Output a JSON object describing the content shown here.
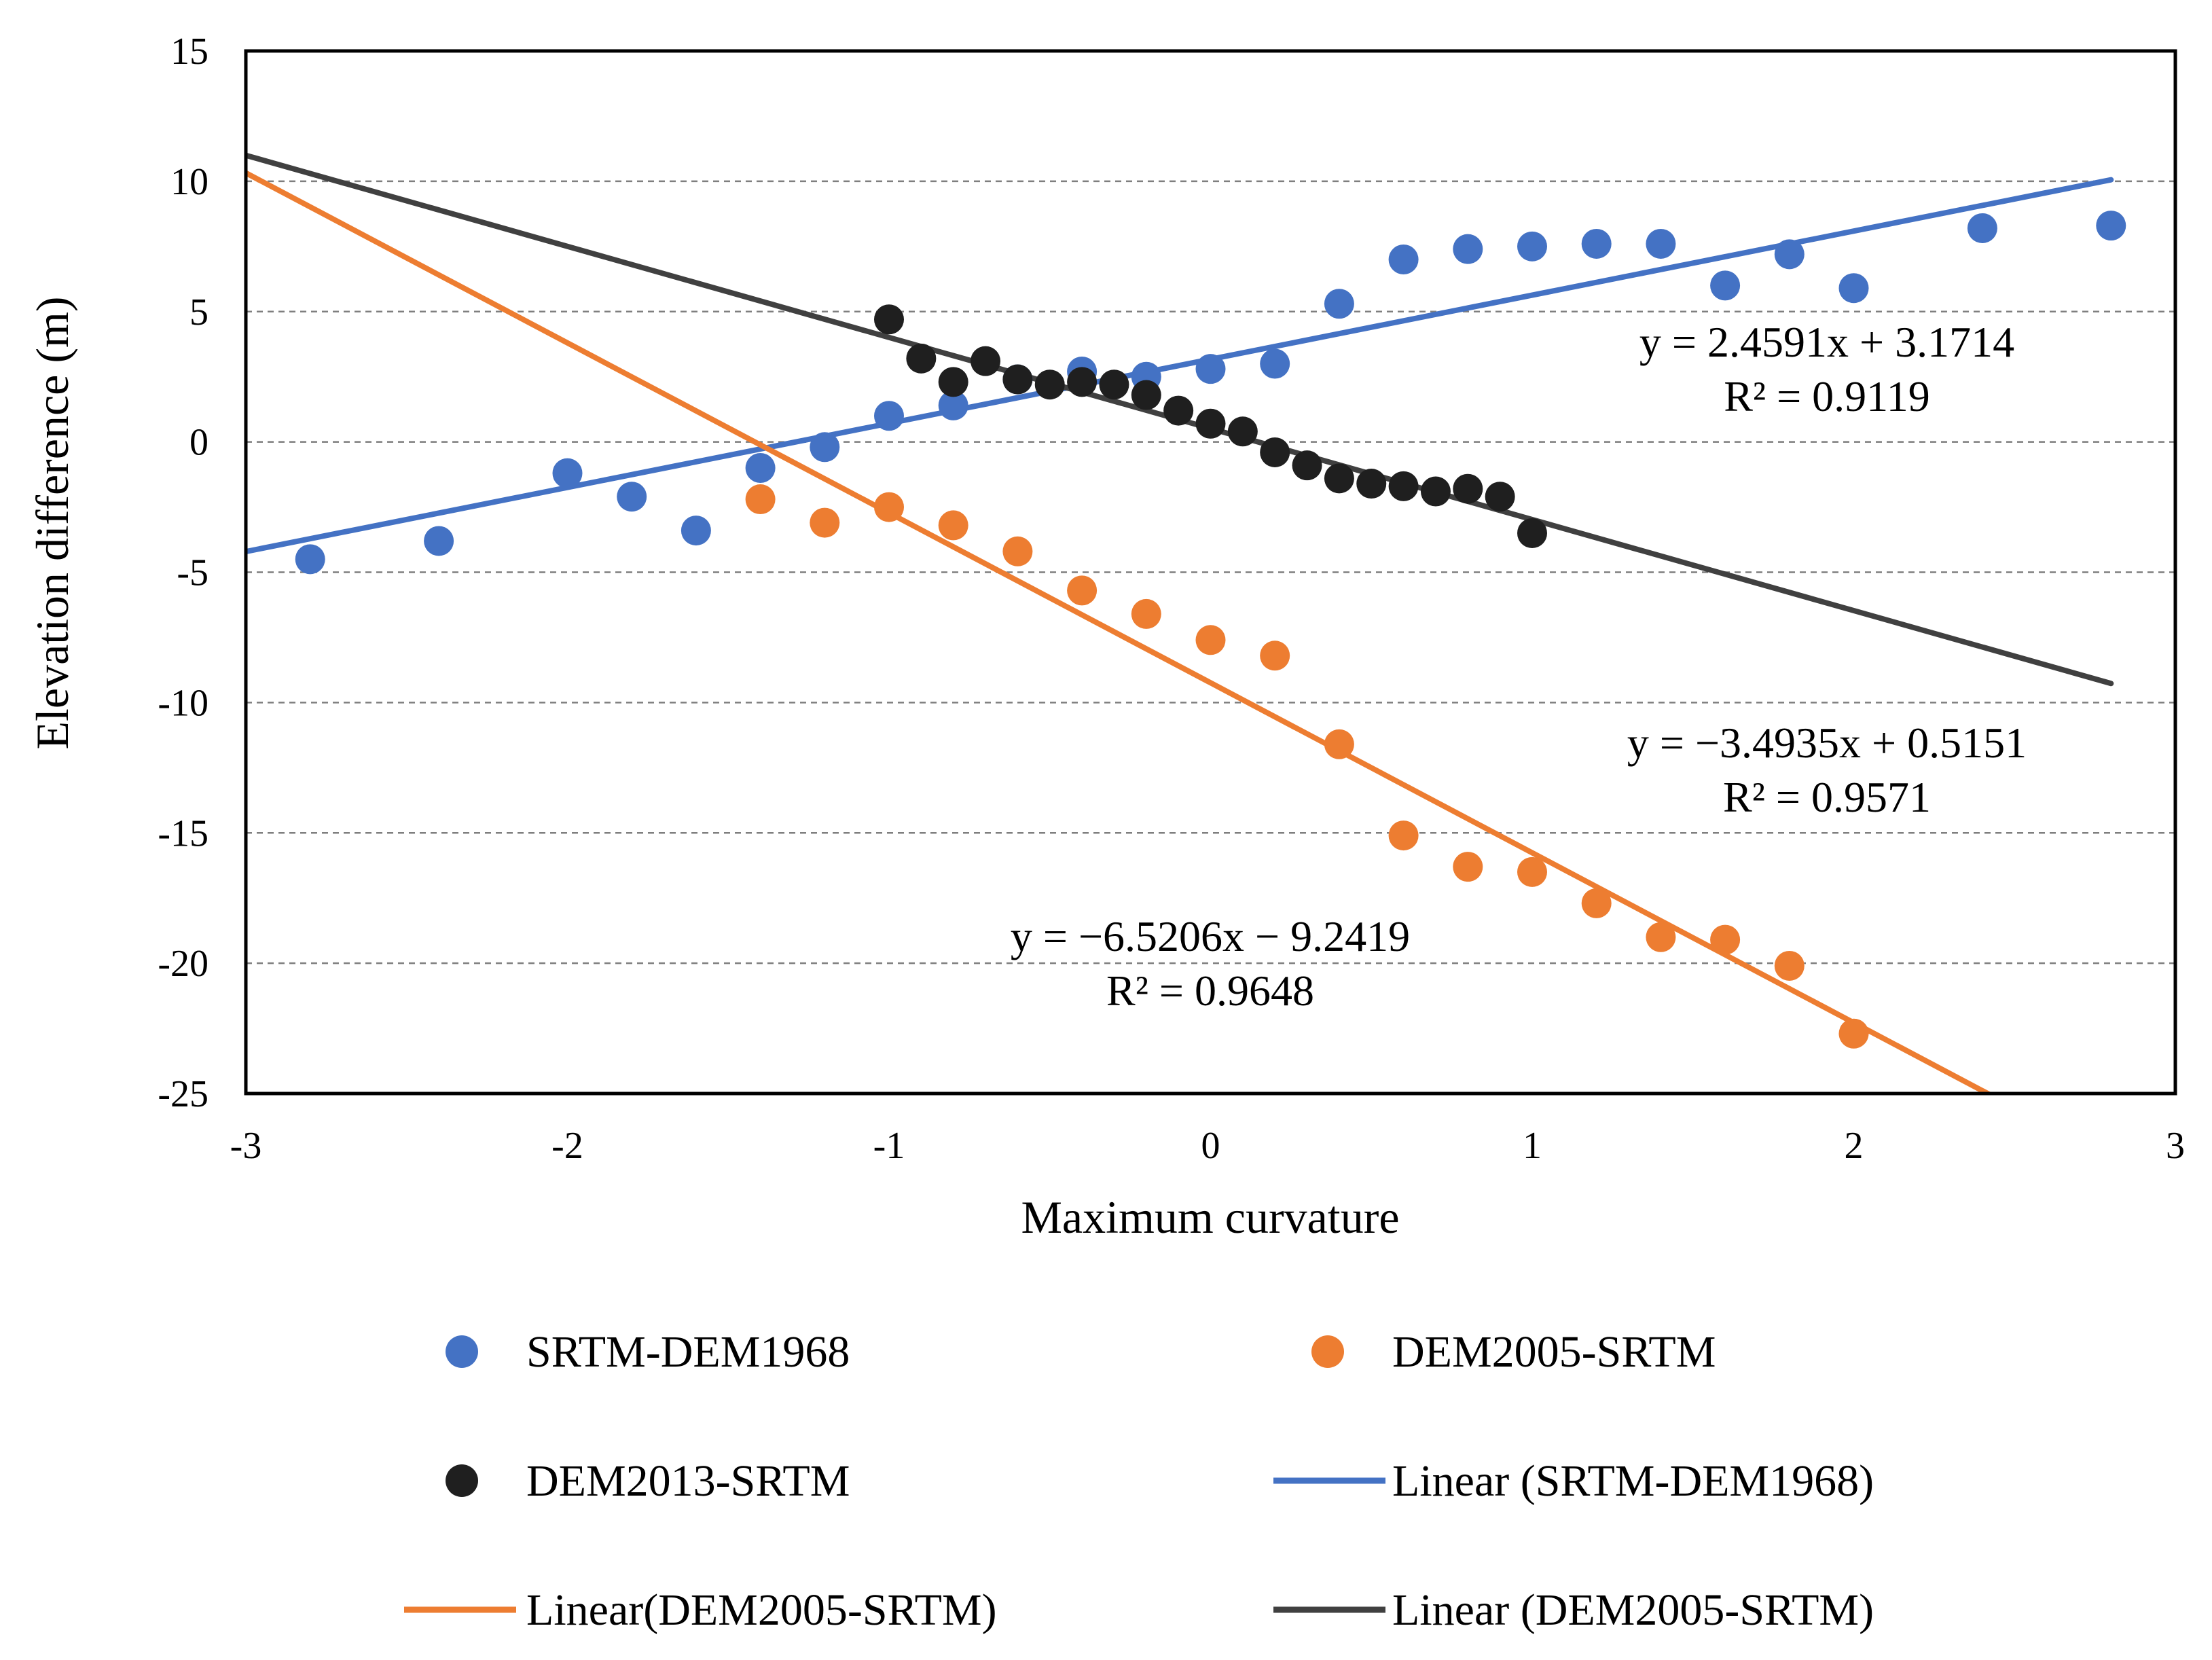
{
  "chart_data": {
    "type": "scatter",
    "xlabel": "Maximum curvature",
    "ylabel": "Elevation difference (m)",
    "xlim": [
      -3,
      3
    ],
    "ylim": [
      -25,
      15
    ],
    "x_ticks": [
      -3,
      -2,
      -1,
      0,
      1,
      2,
      3
    ],
    "y_ticks": [
      -25,
      -20,
      -15,
      -10,
      -5,
      0,
      5,
      10,
      15
    ],
    "grid": "horizontal dashed",
    "legend_position": "bottom",
    "series": [
      {
        "name": "SRTM-DEM1968",
        "type": "scatter",
        "color": "#4472C4",
        "points": [
          [
            -2.8,
            -4.5
          ],
          [
            -2.4,
            -3.8
          ],
          [
            -2.0,
            -1.2
          ],
          [
            -1.8,
            -2.1
          ],
          [
            -1.6,
            -3.4
          ],
          [
            -1.4,
            -1.0
          ],
          [
            -1.2,
            -0.2
          ],
          [
            -1.0,
            1.0
          ],
          [
            -0.8,
            1.4
          ],
          [
            -0.6,
            2.4
          ],
          [
            -0.4,
            2.7
          ],
          [
            -0.2,
            2.5
          ],
          [
            0.0,
            2.8
          ],
          [
            0.2,
            3.0
          ],
          [
            0.4,
            5.3
          ],
          [
            0.6,
            7.0
          ],
          [
            0.8,
            7.4
          ],
          [
            1.0,
            7.5
          ],
          [
            1.2,
            7.6
          ],
          [
            1.4,
            7.6
          ],
          [
            1.6,
            6.0
          ],
          [
            1.8,
            7.2
          ],
          [
            2.0,
            5.9
          ],
          [
            2.4,
            8.2
          ],
          [
            2.8,
            8.3
          ]
        ]
      },
      {
        "name": "DEM2005-SRTM",
        "type": "scatter",
        "color": "#ED7D31",
        "points": [
          [
            -1.4,
            -2.2
          ],
          [
            -1.2,
            -3.1
          ],
          [
            -1.0,
            -2.5
          ],
          [
            -0.8,
            -3.2
          ],
          [
            -0.6,
            -4.2
          ],
          [
            -0.4,
            -5.7
          ],
          [
            -0.2,
            -6.6
          ],
          [
            0.0,
            -7.6
          ],
          [
            0.2,
            -8.2
          ],
          [
            0.4,
            -11.6
          ],
          [
            0.6,
            -15.1
          ],
          [
            0.8,
            -16.3
          ],
          [
            1.0,
            -16.5
          ],
          [
            1.2,
            -17.7
          ],
          [
            1.4,
            -19.0
          ],
          [
            1.6,
            -19.1
          ],
          [
            1.8,
            -20.1
          ],
          [
            2.0,
            -22.7
          ]
        ]
      },
      {
        "name": "DEM2013-SRTM",
        "type": "scatter",
        "color": "#1F1F1F",
        "points": [
          [
            -1.0,
            4.7
          ],
          [
            -0.9,
            3.2
          ],
          [
            -0.8,
            2.3
          ],
          [
            -0.7,
            3.1
          ],
          [
            -0.6,
            2.4
          ],
          [
            -0.5,
            2.2
          ],
          [
            -0.4,
            2.3
          ],
          [
            -0.3,
            2.2
          ],
          [
            -0.2,
            1.8
          ],
          [
            -0.1,
            1.2
          ],
          [
            0.0,
            0.7
          ],
          [
            0.1,
            0.4
          ],
          [
            0.2,
            -0.4
          ],
          [
            0.3,
            -0.9
          ],
          [
            0.4,
            -1.4
          ],
          [
            0.5,
            -1.6
          ],
          [
            0.6,
            -1.7
          ],
          [
            0.7,
            -1.9
          ],
          [
            0.8,
            -1.8
          ],
          [
            0.9,
            -2.1
          ],
          [
            1.0,
            -3.5
          ]
        ]
      },
      {
        "name": "Linear (SRTM-DEM1968)",
        "type": "line",
        "color": "#4472C4",
        "slope": 2.4591,
        "intercept": 3.1714,
        "x_range": [
          -3,
          2.8
        ]
      },
      {
        "name": "Linear(DEM2005-SRTM)",
        "type": "line",
        "color": "#ED7D31",
        "slope": -6.5206,
        "intercept": -9.2419,
        "x_range": [
          -3,
          2.8
        ]
      },
      {
        "name": "Linear (DEM2005-SRTM)",
        "type": "line",
        "color": "#404040",
        "slope": -3.4935,
        "intercept": 0.5151,
        "x_range": [
          -3,
          2.8
        ]
      }
    ],
    "annotations": [
      {
        "id": "eq-blue-1",
        "text": "y = 2.4591x + 3.1714"
      },
      {
        "id": "eq-blue-2",
        "text": "R² = 0.9119"
      },
      {
        "id": "eq-black-1",
        "text": "y = −3.4935x + 0.5151"
      },
      {
        "id": "eq-black-2",
        "text": "R² = 0.9571"
      },
      {
        "id": "eq-orange-1",
        "text": "y = −6.5206x − 9.2419"
      },
      {
        "id": "eq-orange-2",
        "text": "R² = 0.9648"
      }
    ]
  }
}
